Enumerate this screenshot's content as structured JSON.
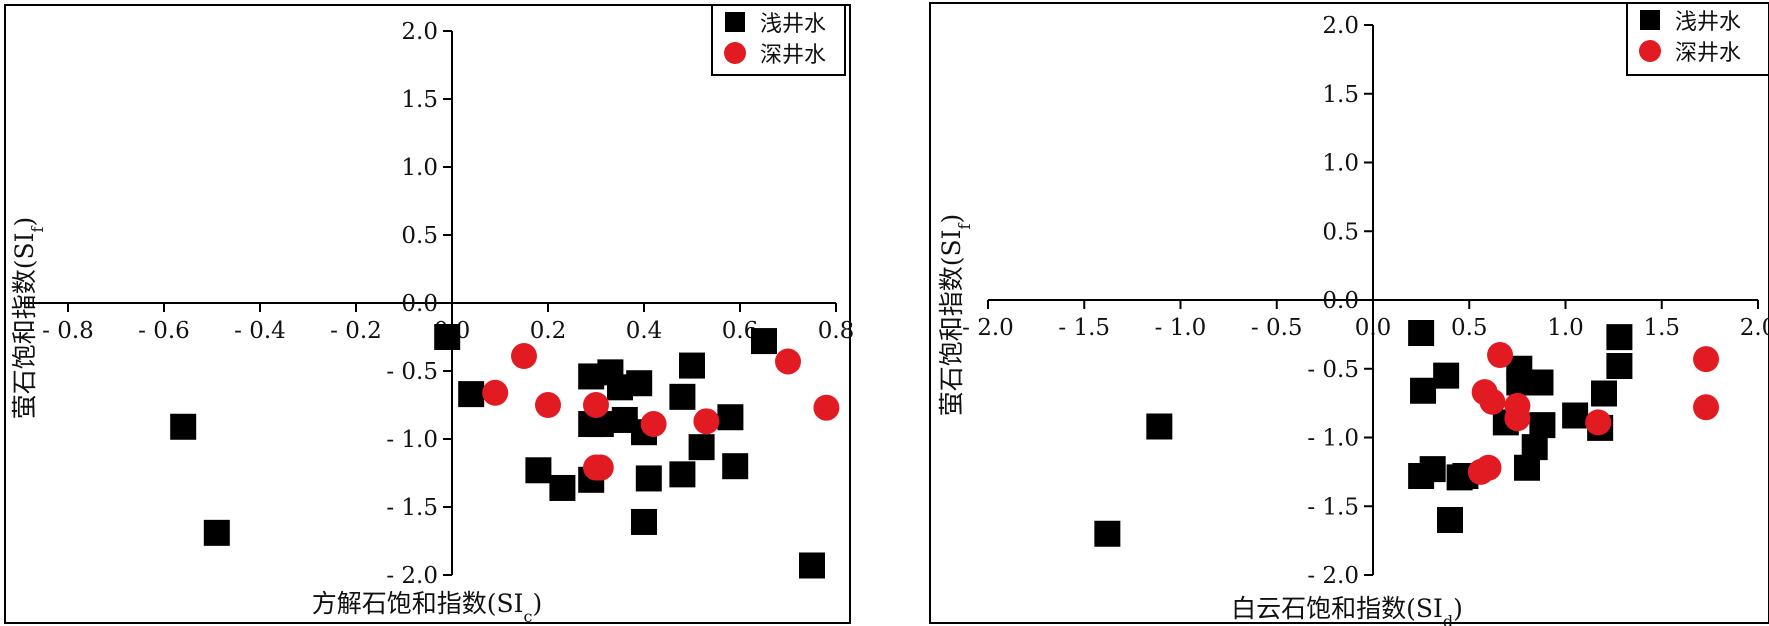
{
  "colors": {
    "shallow": "#000000",
    "deep": "#e21b23"
  },
  "legend": {
    "shallow_label": "浅井水",
    "deep_label": "深井水"
  },
  "chart_data": [
    {
      "type": "scatter",
      "xlabel": "方解石饱和指数(SI",
      "xlabel_sub": "c",
      "ylabel": "萤石饱和指数(SI",
      "ylabel_sub": "f",
      "xlim": [
        -0.9,
        0.8
      ],
      "ylim": [
        -2.0,
        2.0
      ],
      "xticks": [
        {
          "v": -0.8,
          "label": "- 0.8"
        },
        {
          "v": -0.6,
          "label": "- 0.6"
        },
        {
          "v": -0.4,
          "label": "- 0.4"
        },
        {
          "v": -0.2,
          "label": "- 0.2"
        },
        {
          "v": 0.0,
          "label": "0.0"
        },
        {
          "v": 0.2,
          "label": "0.2"
        },
        {
          "v": 0.4,
          "label": "0.4"
        },
        {
          "v": 0.6,
          "label": "0.6"
        },
        {
          "v": 0.8,
          "label": "0.8"
        }
      ],
      "yticks": [
        {
          "v": 2.0,
          "label": "2.0"
        },
        {
          "v": 1.5,
          "label": "1.5"
        },
        {
          "v": 1.0,
          "label": "1.0"
        },
        {
          "v": 0.5,
          "label": "0.5"
        },
        {
          "v": 0.0,
          "label": "0.0"
        },
        {
          "v": -0.5,
          "label": "- 0.5"
        },
        {
          "v": -1.0,
          "label": "- 1.0"
        },
        {
          "v": -1.5,
          "label": "- 1.5"
        },
        {
          "v": -2.0,
          "label": "- 2.0"
        }
      ],
      "legend_position": "top-right",
      "series": [
        {
          "name": "浅井水",
          "marker": "square",
          "points": [
            [
              -0.01,
              -0.25
            ],
            [
              0.04,
              -0.67
            ],
            [
              -0.56,
              -0.91
            ],
            [
              -0.49,
              -1.69
            ],
            [
              0.18,
              -1.23
            ],
            [
              0.23,
              -1.36
            ],
            [
              0.29,
              -1.3
            ],
            [
              0.29,
              -0.54
            ],
            [
              0.33,
              -0.51
            ],
            [
              0.35,
              -0.62
            ],
            [
              0.31,
              -0.89
            ],
            [
              0.29,
              -0.89
            ],
            [
              0.36,
              -0.86
            ],
            [
              0.39,
              -0.59
            ],
            [
              0.4,
              -0.95
            ],
            [
              0.41,
              -1.29
            ],
            [
              0.4,
              -1.61
            ],
            [
              0.48,
              -1.26
            ],
            [
              0.48,
              -0.69
            ],
            [
              0.5,
              -0.46
            ],
            [
              0.52,
              -1.06
            ],
            [
              0.58,
              -0.84
            ],
            [
              0.59,
              -1.2
            ],
            [
              0.65,
              -0.28
            ],
            [
              0.75,
              -1.93
            ]
          ]
        },
        {
          "name": "深井水",
          "marker": "circle",
          "points": [
            [
              0.09,
              -0.66
            ],
            [
              0.15,
              -0.39
            ],
            [
              0.2,
              -0.75
            ],
            [
              0.3,
              -0.75
            ],
            [
              0.3,
              -1.21
            ],
            [
              0.31,
              -1.21
            ],
            [
              0.42,
              -0.89
            ],
            [
              0.53,
              -0.87
            ],
            [
              0.7,
              -0.43
            ],
            [
              0.78,
              -0.77
            ]
          ]
        }
      ]
    },
    {
      "type": "scatter",
      "xlabel": "白云石饱和指数(SI",
      "xlabel_sub": "d",
      "ylabel": "萤石饱和指数(SI",
      "ylabel_sub": "f",
      "xlim": [
        -2.0,
        2.0
      ],
      "ylim": [
        -2.0,
        2.0
      ],
      "xticks": [
        {
          "v": -2.0,
          "label": "- 2.0"
        },
        {
          "v": -1.5,
          "label": "- 1.5"
        },
        {
          "v": -1.0,
          "label": "- 1.0"
        },
        {
          "v": -0.5,
          "label": "- 0.5"
        },
        {
          "v": 0.0,
          "label": "0.0"
        },
        {
          "v": 0.5,
          "label": "0.5"
        },
        {
          "v": 1.0,
          "label": "1.0"
        },
        {
          "v": 1.5,
          "label": "1.5"
        },
        {
          "v": 2.0,
          "label": "2.0"
        }
      ],
      "yticks": [
        {
          "v": 2.0,
          "label": "2.0"
        },
        {
          "v": 1.5,
          "label": "1.5"
        },
        {
          "v": 1.0,
          "label": "1.0"
        },
        {
          "v": 0.5,
          "label": "0.5"
        },
        {
          "v": 0.0,
          "label": "0.0"
        },
        {
          "v": -0.5,
          "label": "- 0.5"
        },
        {
          "v": -1.0,
          "label": "- 1.0"
        },
        {
          "v": -1.5,
          "label": "- 1.5"
        },
        {
          "v": -2.0,
          "label": "- 2.0"
        }
      ],
      "legend_position": "top-right",
      "series": [
        {
          "name": "浅井水",
          "marker": "square",
          "points": [
            [
              0.25,
              -0.24
            ],
            [
              0.26,
              -0.66
            ],
            [
              -1.38,
              -1.7
            ],
            [
              -1.11,
              -0.92
            ],
            [
              0.25,
              -1.28
            ],
            [
              0.31,
              -1.23
            ],
            [
              0.4,
              -1.6
            ],
            [
              0.38,
              -0.55
            ],
            [
              0.45,
              -1.29
            ],
            [
              0.48,
              -1.28
            ],
            [
              0.76,
              -0.5
            ],
            [
              0.76,
              -0.6
            ],
            [
              0.87,
              -0.6
            ],
            [
              0.69,
              -0.89
            ],
            [
              0.8,
              -1.22
            ],
            [
              0.84,
              -1.07
            ],
            [
              0.88,
              -0.91
            ],
            [
              1.05,
              -0.84
            ],
            [
              1.18,
              -0.93
            ],
            [
              1.2,
              -0.68
            ],
            [
              1.28,
              -0.27
            ],
            [
              1.28,
              -0.48
            ]
          ]
        },
        {
          "name": "深井水",
          "marker": "circle",
          "points": [
            [
              0.56,
              -1.25
            ],
            [
              0.6,
              -1.22
            ],
            [
              0.58,
              -0.67
            ],
            [
              0.62,
              -0.74
            ],
            [
              0.66,
              -0.4
            ],
            [
              0.75,
              -0.77
            ],
            [
              0.75,
              -0.86
            ],
            [
              1.17,
              -0.89
            ],
            [
              1.73,
              -0.43
            ],
            [
              1.73,
              -0.78
            ]
          ]
        }
      ]
    }
  ]
}
